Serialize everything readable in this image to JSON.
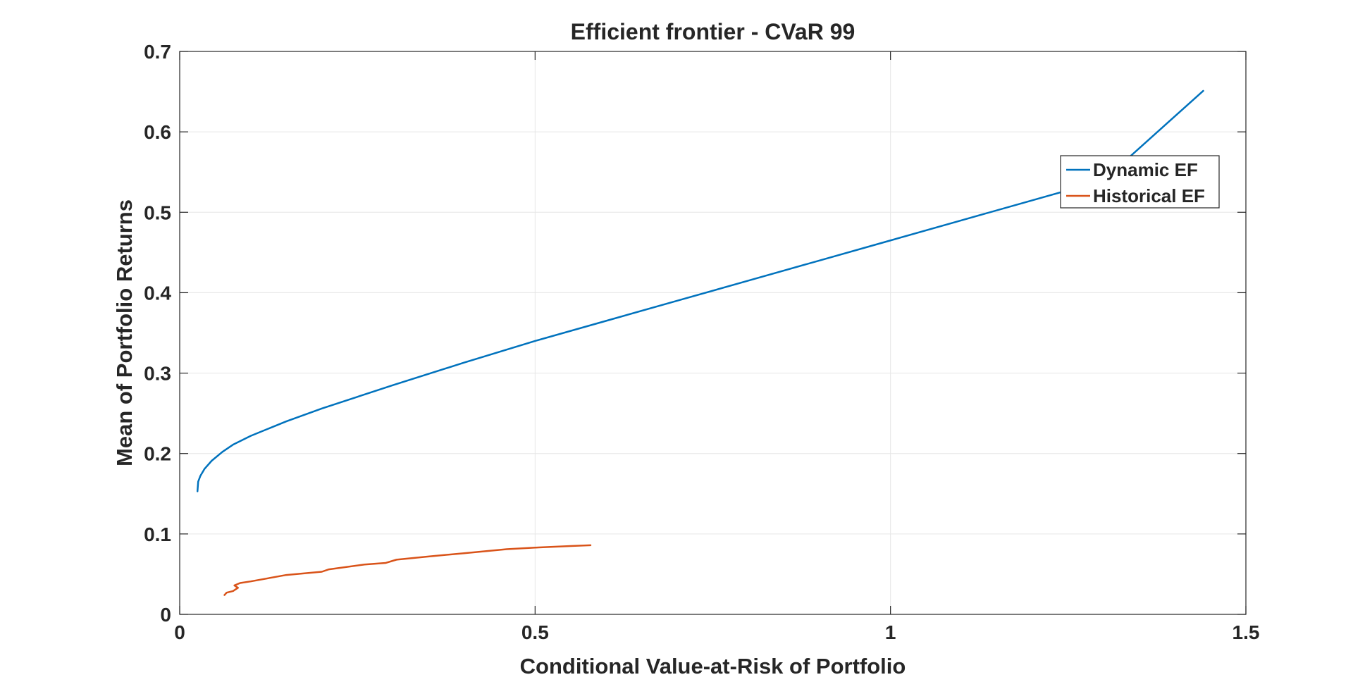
{
  "chart_data": {
    "type": "line",
    "title": "Efficient frontier  - CVaR 99",
    "xlabel": "Conditional Value-at-Risk of Portfolio",
    "ylabel": "Mean of Portfolio Returns",
    "xlim": [
      0,
      1.5
    ],
    "ylim": [
      0,
      0.7
    ],
    "xticks": [
      0,
      0.5,
      1,
      1.5
    ],
    "xtick_labels": [
      "0",
      "0.5",
      "1",
      "1.5"
    ],
    "yticks": [
      0,
      0.1,
      0.2,
      0.3,
      0.4,
      0.5,
      0.6,
      0.7
    ],
    "ytick_labels": [
      "0",
      "0.1",
      "0.2",
      "0.3",
      "0.4",
      "0.5",
      "0.6",
      "0.7"
    ],
    "grid": true,
    "legend_position": "top-right",
    "series": [
      {
        "name": "Dynamic EF",
        "color": "#0072BD",
        "x": [
          0.025,
          0.026,
          0.029,
          0.035,
          0.045,
          0.06,
          0.075,
          0.1,
          0.15,
          0.2,
          0.3,
          0.4,
          0.5,
          0.6,
          0.7,
          0.8,
          0.9,
          1.0,
          1.1,
          1.2,
          1.3,
          1.44
        ],
        "y": [
          0.153,
          0.165,
          0.172,
          0.181,
          0.191,
          0.202,
          0.211,
          0.222,
          0.24,
          0.256,
          0.285,
          0.313,
          0.34,
          0.365,
          0.39,
          0.415,
          0.44,
          0.465,
          0.49,
          0.515,
          0.54,
          0.651
        ]
      },
      {
        "name": "Historical EF",
        "color": "#D95319",
        "x": [
          0.063,
          0.066,
          0.075,
          0.082,
          0.077,
          0.085,
          0.1,
          0.15,
          0.2,
          0.21,
          0.26,
          0.29,
          0.305,
          0.35,
          0.4,
          0.46,
          0.5,
          0.55,
          0.578
        ],
        "y": [
          0.024,
          0.027,
          0.029,
          0.033,
          0.036,
          0.039,
          0.041,
          0.049,
          0.053,
          0.056,
          0.062,
          0.064,
          0.068,
          0.072,
          0.076,
          0.081,
          0.083,
          0.085,
          0.086
        ]
      }
    ]
  }
}
